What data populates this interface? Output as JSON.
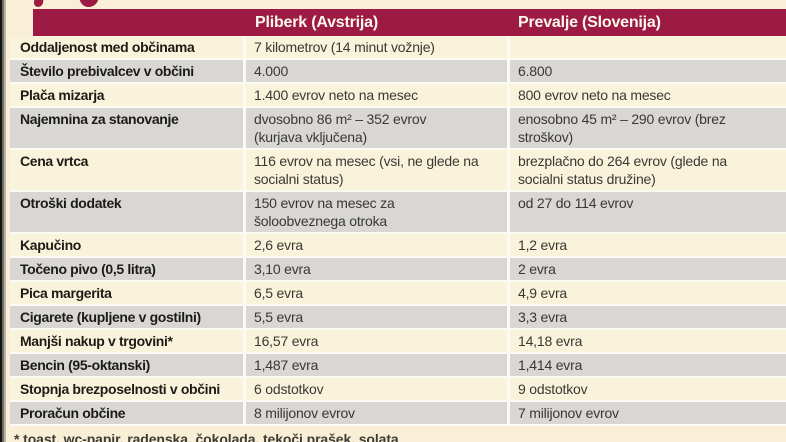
{
  "colors": {
    "header_bg": "#9c1a44",
    "row_cream": "#faf3dc",
    "row_gray": "#d8d7d4",
    "separator": "#fbfaf3",
    "page_bg": "#f8efd6",
    "header_text": "#fdf8ee",
    "body_text": "#3a3833"
  },
  "table": {
    "header": {
      "col_pliberk": "Pliberk (Avstrija)",
      "col_prevalje": "Prevalje (Slovenija)"
    },
    "rows": [
      {
        "label": "Oddaljenost med občinama",
        "pliberk": "7 kilometrov (14 minut vožnje)",
        "prevalje": ""
      },
      {
        "label": "Število prebivalcev v občini",
        "pliberk": "4.000",
        "prevalje": "6.800"
      },
      {
        "label": "Plača mizarja",
        "pliberk": "1.400 evrov neto na mesec",
        "prevalje": "800 evrov neto na mesec"
      },
      {
        "label": "Najemnina za stanovanje",
        "pliberk": "dvosobno 86 m² – 352 evrov\n(kurjava vključena)",
        "prevalje": "enosobno 45 m² – 290 evrov (brez\nstroškov)"
      },
      {
        "label": "Cena vrtca",
        "pliberk": "116 evrov na mesec (vsi, ne glede na\nsocialni status)",
        "prevalje": "brezplačno do 264 evrov (glede na\nsocialni status družine)"
      },
      {
        "label": "Otroški dodatek",
        "pliberk": "150 evrov na mesec za\nšoloobveznega otroka",
        "prevalje": "od 27 do 114 evrov"
      },
      {
        "label": "Kapučino",
        "pliberk": "2,6 evra",
        "prevalje": "1,2 evra"
      },
      {
        "label": "Točeno pivo (0,5 litra)",
        "pliberk": "3,10 evra",
        "prevalje": "2 evra"
      },
      {
        "label": "Pica margerita",
        "pliberk": "6,5 evra",
        "prevalje": "4,9 evra"
      },
      {
        "label": "Cigarete (kupljene v gostilni)",
        "pliberk": "5,5 evra",
        "prevalje": "3,3 evra"
      },
      {
        "label": "Manjši nakup v trgovini*",
        "pliberk": "16,57 evra",
        "prevalje": "14,18 evra"
      },
      {
        "label": "Bencin (95-oktanski)",
        "pliberk": "1,487 evra",
        "prevalje": "1,414 evra"
      },
      {
        "label": "Stopnja brezposelnosti v občini",
        "pliberk": "6 odstotkov",
        "prevalje": "9 odstotkov"
      },
      {
        "label": "Proračun občine",
        "pliberk": "8 milijonov evrov",
        "prevalje": "7 milijonov evrov"
      }
    ],
    "footnote": "* toast, wc-papir, radenska, čokolada, tekoči prašek, solata"
  }
}
